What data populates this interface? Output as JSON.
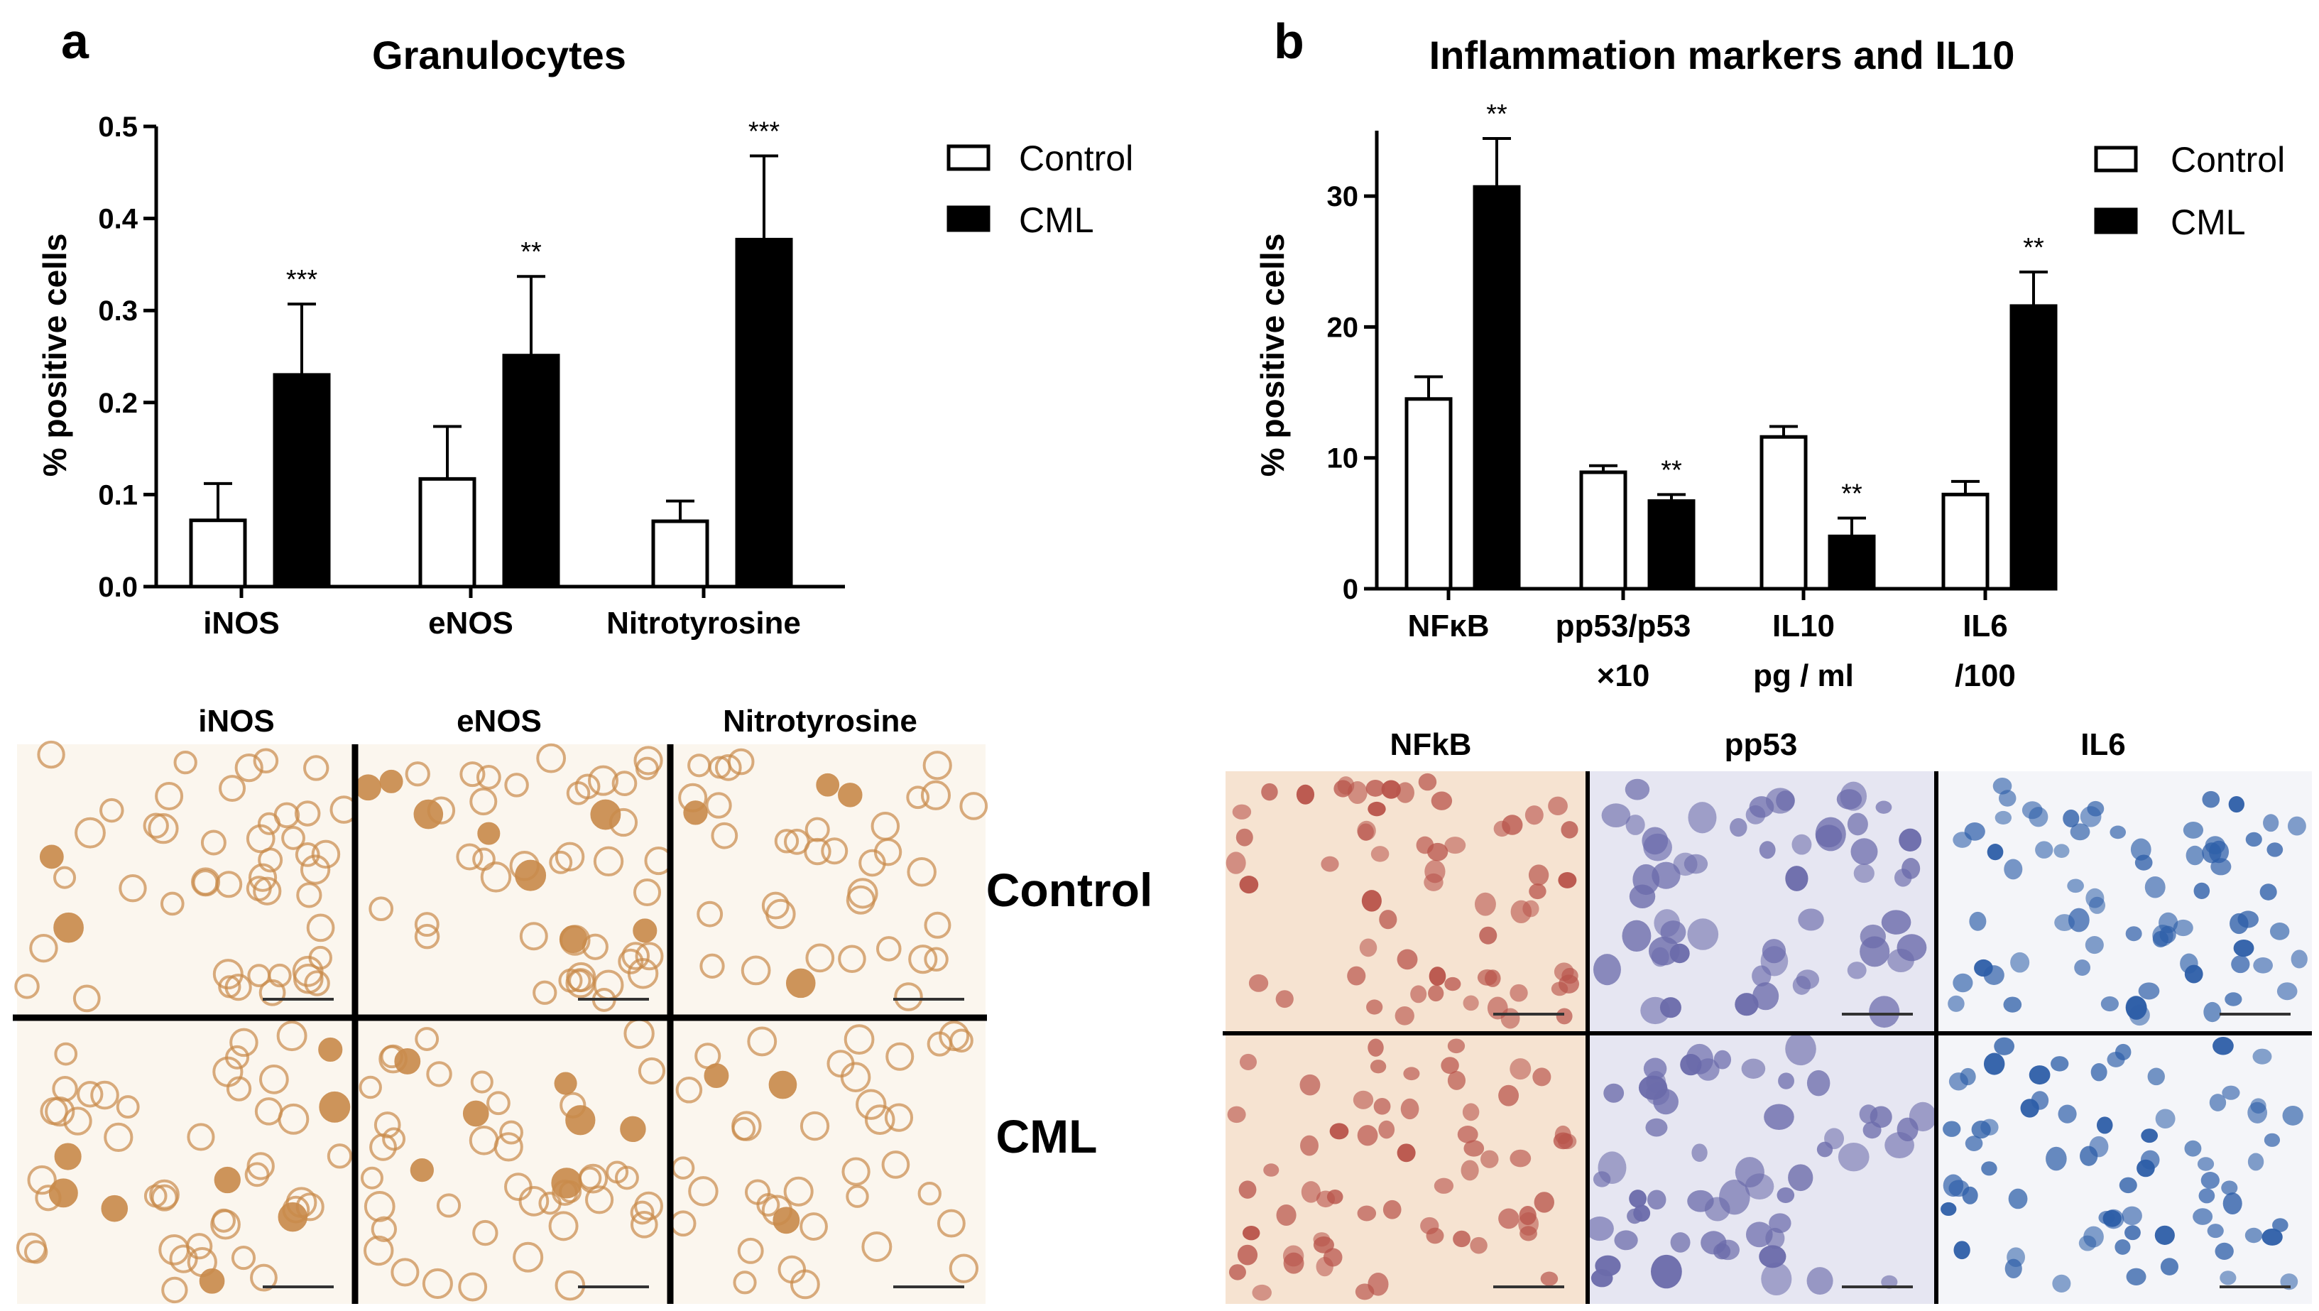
{
  "panels": {
    "a": {
      "letter": "a",
      "micro": {
        "columns": [
          "iNOS",
          "eNOS",
          "Nitrotyrosine"
        ],
        "rows": [
          "Control",
          "CML"
        ]
      }
    },
    "b": {
      "letter": "b",
      "micro": {
        "columns": [
          "NFkB",
          "pp53",
          "IL6"
        ]
      }
    }
  },
  "legend": {
    "control": "Control",
    "cml": "CML"
  },
  "colors": {
    "control": "#ffffff",
    "cml": "#000000",
    "dab_bg": "#fbf6ee",
    "dab_cell": "#c98a4a",
    "nfkb_bg": "#f6e3d1",
    "nfkb_cell": "#b8534a",
    "pp53_bg": "#e6e6f2",
    "pp53_cell": "#6a6aaa",
    "il6_bg": "#f4f5f9",
    "il6_cell": "#2d5ea8"
  },
  "chart_data": [
    {
      "type": "bar",
      "title": "Granulocytes",
      "ylabel": "% positive cells",
      "xlabel": "",
      "ylim": [
        0,
        0.5
      ],
      "yticks": [
        "0.0",
        "0.1",
        "0.2",
        "0.3",
        "0.4",
        "0.5"
      ],
      "categories": [
        [
          "iNOS"
        ],
        [
          "eNOS"
        ],
        [
          "Nitrotyrosine"
        ]
      ],
      "series": [
        {
          "name": "Control",
          "values": [
            0.072,
            0.117,
            0.071
          ],
          "errors": [
            0.04,
            0.057,
            0.022
          ]
        },
        {
          "name": "CML",
          "values": [
            0.23,
            0.251,
            0.377
          ],
          "errors": [
            0.077,
            0.086,
            0.091
          ]
        }
      ],
      "significance": [
        "***",
        "**",
        "***"
      ],
      "legend_position": "top-right"
    },
    {
      "type": "bar",
      "title": "Inflammation markers and IL10",
      "ylabel": "% positive cells",
      "xlabel": "",
      "ylim": [
        0,
        35
      ],
      "yticks": [
        "0",
        "10",
        "20",
        "30"
      ],
      "categories": [
        [
          "NFκB"
        ],
        [
          "pp53/p53",
          "×10"
        ],
        [
          "IL10",
          "pg / ml"
        ],
        [
          "IL6",
          "/100"
        ]
      ],
      "series": [
        {
          "name": "Control",
          "values": [
            14.5,
            8.9,
            11.6,
            7.2
          ],
          "errors": [
            1.7,
            0.5,
            0.8,
            1.0
          ]
        },
        {
          "name": "CML",
          "values": [
            30.7,
            6.7,
            4.0,
            21.6
          ],
          "errors": [
            3.7,
            0.5,
            1.4,
            2.6
          ]
        }
      ],
      "significance": [
        "**",
        "**",
        "**",
        "**"
      ],
      "legend_position": "top-right"
    }
  ]
}
